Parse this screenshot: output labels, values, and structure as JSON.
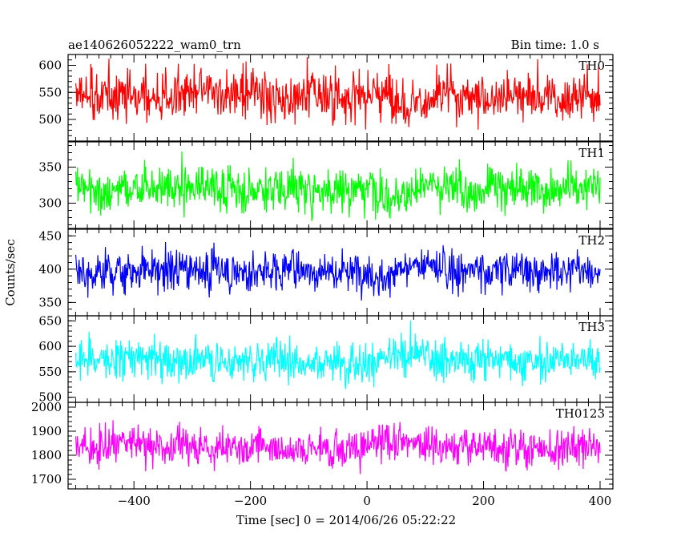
{
  "title_left": "ae140626052222_wam0_trn",
  "title_right": "Bin time: 1.0 s",
  "ylabel": "Counts/sec",
  "xlabel": "Time [sec] 0 = 2014/06/26 05:22:22",
  "chart_data": [
    {
      "type": "line",
      "name": "TH0",
      "color": "#ff0000",
      "x_range": [
        -500,
        400
      ],
      "ylim": [
        460,
        620
      ],
      "yticks": [
        500,
        550,
        600
      ],
      "mean": 543,
      "spread": 32,
      "points": 900
    },
    {
      "type": "line",
      "name": "TH1",
      "color": "#00ff00",
      "x_range": [
        -500,
        400
      ],
      "ylim": [
        265,
        385
      ],
      "yticks": [
        300,
        350
      ],
      "mean": 322,
      "spread": 22,
      "points": 900
    },
    {
      "type": "line",
      "name": "TH2",
      "color": "#0000ff",
      "x_range": [
        -500,
        400
      ],
      "ylim": [
        330,
        460
      ],
      "yticks": [
        350,
        400,
        450
      ],
      "mean": 400,
      "spread": 22,
      "points": 900
    },
    {
      "type": "line",
      "name": "TH3",
      "color": "#00ffff",
      "x_range": [
        -500,
        400
      ],
      "ylim": [
        490,
        660
      ],
      "yticks": [
        500,
        550,
        600,
        650
      ],
      "mean": 575,
      "spread": 28,
      "points": 900
    },
    {
      "type": "line",
      "name": "TH0123",
      "color": "#ff00ff",
      "x_range": [
        -500,
        400
      ],
      "ylim": [
        1660,
        2020
      ],
      "yticks": [
        1700,
        1800,
        1900,
        2000
      ],
      "mean": 1838,
      "spread": 55,
      "points": 900
    }
  ],
  "x_axis": {
    "xlim": [
      -513,
      422
    ],
    "ticks": [
      -400,
      -200,
      0,
      200,
      400
    ],
    "tick_labels": [
      "−400",
      "−200",
      "0",
      "200",
      "400"
    ]
  }
}
